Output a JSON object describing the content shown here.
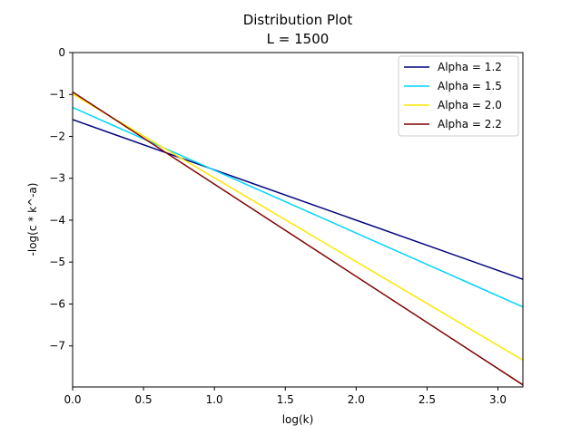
{
  "chart_data": {
    "type": "line",
    "title": "Distribution Plot",
    "subtitle": "L = 1500",
    "xlabel": "log(k)",
    "ylabel": "-log(c * k^-a)",
    "xlim": [
      0,
      3.176
    ],
    "ylim": [
      -7.98,
      0
    ],
    "xticks": [
      0.0,
      0.5,
      1.0,
      1.5,
      2.0,
      2.5,
      3.0
    ],
    "xtick_labels": [
      "0.0",
      "0.5",
      "1.0",
      "1.5",
      "2.0",
      "2.5",
      "3.0"
    ],
    "yticks": [
      0,
      -1,
      -2,
      -3,
      -4,
      -5,
      -6,
      -7
    ],
    "ytick_labels": [
      "0",
      "−1",
      "−2",
      "−3",
      "−4",
      "−5",
      "−6",
      "−7"
    ],
    "grid": false,
    "legend_position": "top-right",
    "series": [
      {
        "name": "Alpha = 1.2",
        "color": "#00007f",
        "x": [
          0.0,
          3.176
        ],
        "y": [
          -1.6,
          -5.41
        ]
      },
      {
        "name": "Alpha = 1.5",
        "color": "#00d4ff",
        "x": [
          0.0,
          3.176
        ],
        "y": [
          -1.31,
          -6.07
        ]
      },
      {
        "name": "Alpha = 2.0",
        "color": "#ffe600",
        "x": [
          0.0,
          3.176
        ],
        "y": [
          -0.99,
          -7.34
        ]
      },
      {
        "name": "Alpha = 2.2",
        "color": "#7f0000",
        "x": [
          0.0,
          3.176
        ],
        "y": [
          -0.94,
          -7.93
        ]
      }
    ]
  }
}
